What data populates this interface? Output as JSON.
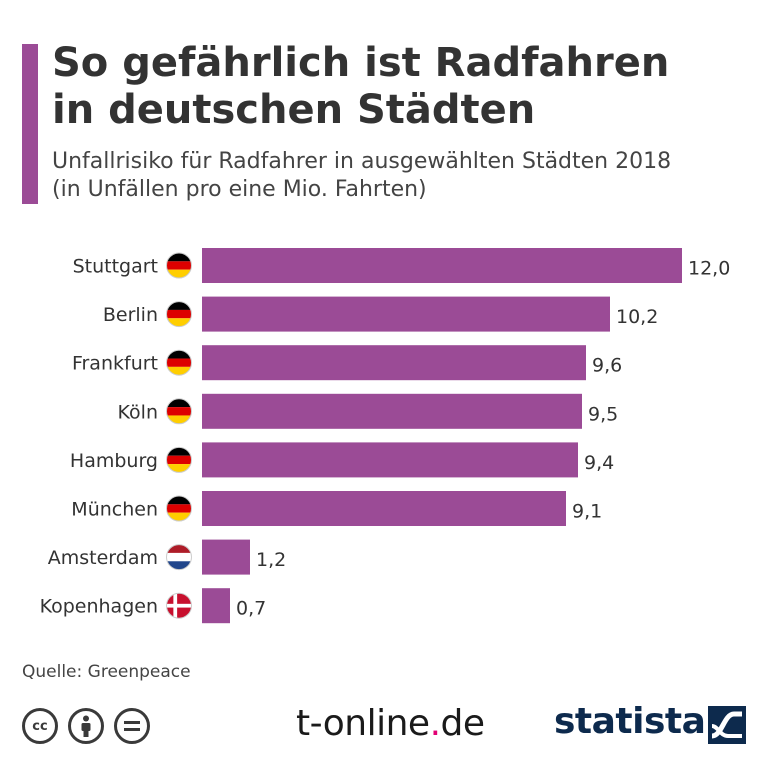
{
  "header": {
    "title_line1": "So gefährlich ist Radfahren",
    "title_line2": "in deutschen Städten",
    "subtitle_line1": "Unfallrisiko für Radfahrer in ausgewählten Städten 2018",
    "subtitle_line2": "(in Unfällen pro eine Mio. Fahrten)",
    "accent_color": "#9b4b96"
  },
  "chart_data": {
    "type": "bar",
    "orientation": "horizontal",
    "categories": [
      "Stuttgart",
      "Berlin",
      "Frankfurt",
      "Köln",
      "Hamburg",
      "München",
      "Amsterdam",
      "Kopenhagen"
    ],
    "values": [
      12.0,
      10.2,
      9.6,
      9.5,
      9.4,
      9.1,
      1.2,
      0.7
    ],
    "value_labels": [
      "12,0",
      "10,2",
      "9,6",
      "9,5",
      "9,4",
      "9,1",
      "1,2",
      "0,7"
    ],
    "flags": [
      "germany-flag-icon",
      "germany-flag-icon",
      "germany-flag-icon",
      "germany-flag-icon",
      "germany-flag-icon",
      "germany-flag-icon",
      "netherlands-flag-icon",
      "denmark-flag-icon"
    ],
    "bar_color": "#9b4b96",
    "xlim": [
      0,
      12
    ],
    "grid": false,
    "legend": "none"
  },
  "footer": {
    "source": "Quelle: Greenpeace",
    "cc_icons": [
      "cc",
      "by",
      "nd"
    ],
    "tonline_main": "t-online",
    "tonline_dot": ".",
    "tonline_tld": "de",
    "statista": "statista"
  }
}
